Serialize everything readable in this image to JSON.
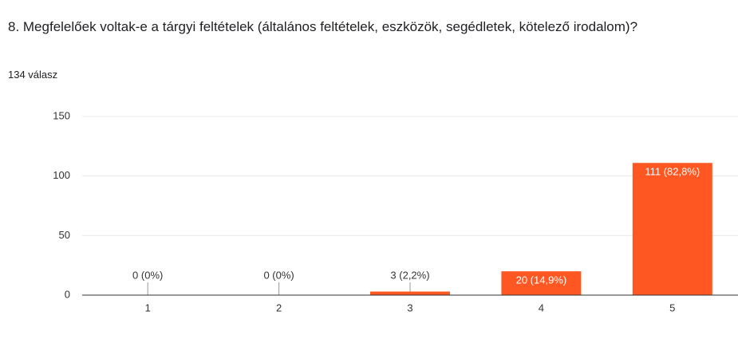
{
  "chart_data": {
    "type": "bar",
    "title": "8. Megfelelőek voltak-e a tárgyi feltételek (általános feltételek, eszközök, segédletek, kötelező irodalom)?",
    "subtitle": "134 válasz",
    "categories": [
      "1",
      "2",
      "3",
      "4",
      "5"
    ],
    "values": [
      0,
      0,
      3,
      20,
      111
    ],
    "value_labels": [
      "0 (0%)",
      "0 (0%)",
      "3 (2,2%)",
      "20 (14,9%)",
      "111 (82,8%)"
    ],
    "color": "#ff5722",
    "ylim": [
      0,
      150
    ],
    "yticks": [
      0,
      50,
      100,
      150
    ],
    "grid": true
  }
}
